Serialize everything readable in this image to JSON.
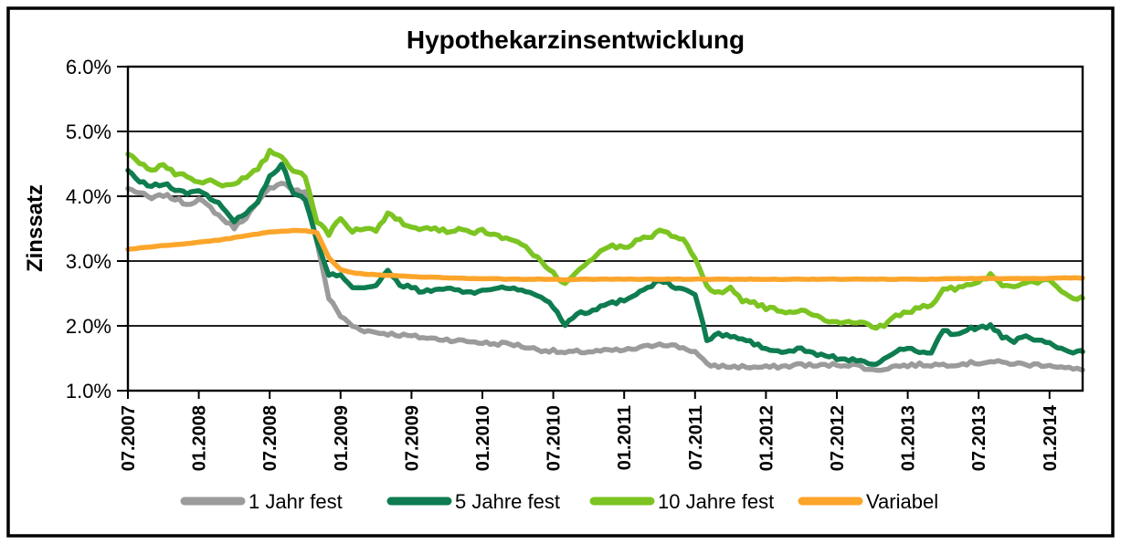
{
  "title": "Hypothekarzinsentwicklung",
  "y_axis": {
    "label": "Zinssatz",
    "ticks": [
      "6.0%",
      "5.0%",
      "4.0%",
      "3.0%",
      "2.0%",
      "1.0%"
    ],
    "tick_values": [
      6,
      5,
      4,
      3,
      2,
      1
    ]
  },
  "x_axis": {
    "ticks": [
      "07.2007",
      "01.2008",
      "07.2008",
      "01.2009",
      "07.2009",
      "01.2010",
      "07.2010",
      "01.2011",
      "07.2011",
      "01.2012",
      "07.2012",
      "01.2013",
      "07.2013",
      "01.2014"
    ]
  },
  "legend": {
    "items": [
      {
        "label": "1 Jahr fest",
        "color": "#9B9B9B"
      },
      {
        "label": "5 Jahre fest",
        "color": "#0E7C50"
      },
      {
        "label": "10 Jahre fest",
        "color": "#7CC421"
      },
      {
        "label": "Variabel",
        "color": "#FCA52B"
      }
    ]
  },
  "chart_data": {
    "type": "line",
    "title": "Hypothekarzinsentwicklung",
    "xlabel": "",
    "ylabel": "Zinssatz",
    "y_unit": "%",
    "ylim": [
      1.0,
      6.0
    ],
    "grid": "horizontal",
    "legend_position": "bottom",
    "x_start": "07.2007",
    "x_end": "04.2014",
    "x_step_months": 1,
    "x_tick_labels": [
      "07.2007",
      "01.2008",
      "07.2008",
      "01.2009",
      "07.2009",
      "01.2010",
      "07.2010",
      "01.2011",
      "07.2011",
      "01.2012",
      "07.2012",
      "01.2013",
      "07.2013",
      "01.2014"
    ],
    "series": [
      {
        "name": "1 Jahr fest",
        "color": "#9B9B9B",
        "values": [
          4.12,
          4.05,
          3.96,
          4.02,
          3.96,
          3.88,
          3.95,
          3.82,
          3.65,
          3.52,
          3.68,
          3.9,
          4.12,
          4.22,
          4.1,
          4.05,
          3.3,
          2.43,
          2.15,
          2.0,
          1.93,
          1.9,
          1.88,
          1.86,
          1.84,
          1.82,
          1.8,
          1.79,
          1.77,
          1.76,
          1.74,
          1.72,
          1.73,
          1.7,
          1.66,
          1.63,
          1.61,
          1.58,
          1.6,
          1.6,
          1.61,
          1.62,
          1.62,
          1.65,
          1.68,
          1.73,
          1.7,
          1.66,
          1.6,
          1.4,
          1.38,
          1.37,
          1.37,
          1.36,
          1.36,
          1.37,
          1.38,
          1.41,
          1.38,
          1.39,
          1.4,
          1.4,
          1.38,
          1.31,
          1.34,
          1.38,
          1.39,
          1.4,
          1.4,
          1.4,
          1.41,
          1.42,
          1.43,
          1.45,
          1.43,
          1.42,
          1.4,
          1.4,
          1.4,
          1.36,
          1.33,
          1.32
        ]
      },
      {
        "name": "5 Jahre fest",
        "color": "#0E7C50",
        "values": [
          4.4,
          4.22,
          4.15,
          4.2,
          4.1,
          4.05,
          4.1,
          3.95,
          3.85,
          3.6,
          3.76,
          3.92,
          4.3,
          4.5,
          4.05,
          3.96,
          3.3,
          2.77,
          2.8,
          2.6,
          2.6,
          2.62,
          2.85,
          2.62,
          2.6,
          2.52,
          2.55,
          2.58,
          2.55,
          2.5,
          2.55,
          2.58,
          2.6,
          2.55,
          2.52,
          2.45,
          2.3,
          2.02,
          2.2,
          2.22,
          2.3,
          2.35,
          2.4,
          2.5,
          2.6,
          2.7,
          2.63,
          2.55,
          2.5,
          1.78,
          1.87,
          1.84,
          1.8,
          1.72,
          1.65,
          1.6,
          1.6,
          1.65,
          1.57,
          1.55,
          1.5,
          1.48,
          1.46,
          1.38,
          1.5,
          1.6,
          1.68,
          1.57,
          1.6,
          1.92,
          1.86,
          1.95,
          1.97,
          2.0,
          1.83,
          1.74,
          1.87,
          1.76,
          1.73,
          1.64,
          1.6,
          1.6
        ]
      },
      {
        "name": "10 Jahre fest",
        "color": "#7CC421",
        "values": [
          4.65,
          4.5,
          4.42,
          4.46,
          4.36,
          4.3,
          4.22,
          4.26,
          4.15,
          4.2,
          4.3,
          4.42,
          4.68,
          4.6,
          4.38,
          4.32,
          3.6,
          3.42,
          3.68,
          3.45,
          3.5,
          3.45,
          3.75,
          3.62,
          3.52,
          3.5,
          3.5,
          3.47,
          3.5,
          3.45,
          3.46,
          3.4,
          3.36,
          3.3,
          3.15,
          2.98,
          2.8,
          2.63,
          2.85,
          3.0,
          3.15,
          3.24,
          3.2,
          3.3,
          3.36,
          3.46,
          3.4,
          3.35,
          3.05,
          2.6,
          2.5,
          2.58,
          2.4,
          2.35,
          2.28,
          2.25,
          2.22,
          2.25,
          2.15,
          2.1,
          2.05,
          2.08,
          2.05,
          1.97,
          2.0,
          2.15,
          2.2,
          2.3,
          2.3,
          2.6,
          2.58,
          2.64,
          2.66,
          2.78,
          2.65,
          2.6,
          2.64,
          2.68,
          2.7,
          2.5,
          2.44,
          2.43
        ]
      },
      {
        "name": "Variabel",
        "color": "#FCA52B",
        "values": [
          3.18,
          3.2,
          3.22,
          3.24,
          3.25,
          3.27,
          3.29,
          3.31,
          3.33,
          3.36,
          3.39,
          3.42,
          3.45,
          3.46,
          3.47,
          3.47,
          3.44,
          3.05,
          2.87,
          2.82,
          2.8,
          2.79,
          2.78,
          2.77,
          2.76,
          2.75,
          2.75,
          2.74,
          2.74,
          2.73,
          2.73,
          2.73,
          2.72,
          2.72,
          2.72,
          2.72,
          2.72,
          2.71,
          2.72,
          2.72,
          2.72,
          2.72,
          2.72,
          2.72,
          2.72,
          2.72,
          2.72,
          2.72,
          2.72,
          2.72,
          2.72,
          2.72,
          2.72,
          2.72,
          2.72,
          2.72,
          2.72,
          2.72,
          2.72,
          2.72,
          2.72,
          2.72,
          2.72,
          2.72,
          2.72,
          2.72,
          2.72,
          2.72,
          2.72,
          2.73,
          2.73,
          2.73,
          2.73,
          2.73,
          2.73,
          2.73,
          2.73,
          2.73,
          2.73,
          2.74,
          2.74,
          2.74
        ]
      }
    ]
  }
}
